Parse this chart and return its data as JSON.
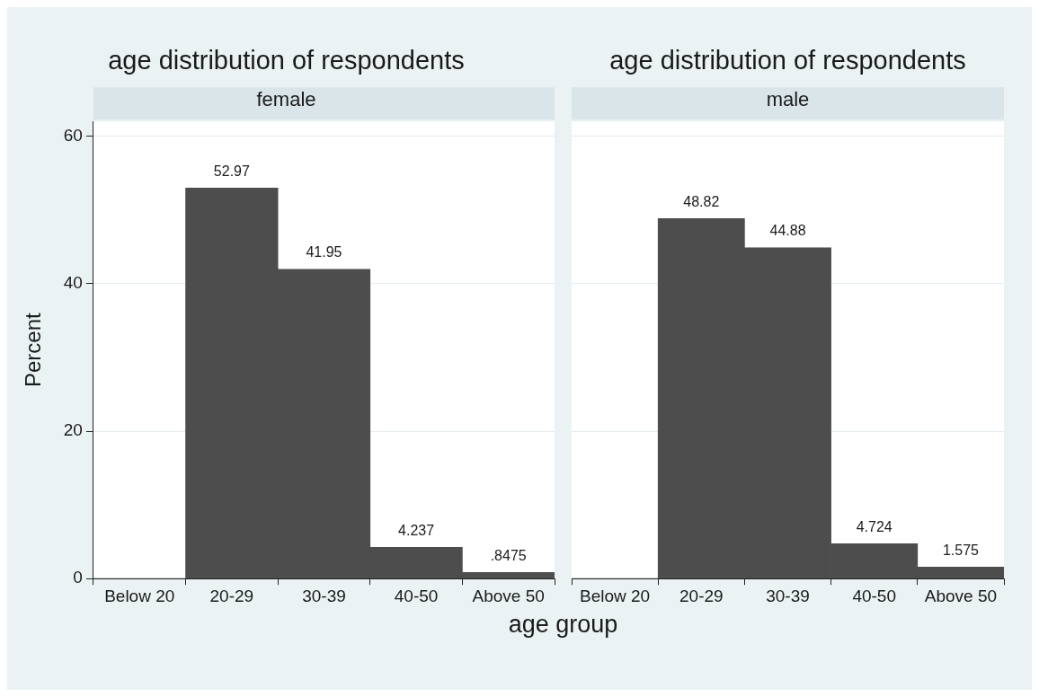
{
  "chart_data": [
    {
      "type": "bar",
      "title": "age distribution of respondents",
      "subtitle": "female",
      "ylabel": "Percent",
      "xlabel": "age group",
      "categories": [
        "Below 20",
        "20-29",
        "30-39",
        "40-50",
        "Above 50"
      ],
      "values": [
        0,
        52.97,
        41.95,
        4.237,
        0.8475
      ],
      "value_labels": [
        null,
        "52.97",
        "41.95",
        "4.237",
        ".8475"
      ],
      "color": "#4d4d4d",
      "ylim": [
        0,
        62
      ],
      "yticks": [
        0,
        20,
        40,
        60
      ],
      "grid": "y",
      "legend": false
    },
    {
      "type": "bar",
      "title": "age distribution of respondents",
      "subtitle": "male",
      "categories": [
        "Below 20",
        "20-29",
        "30-39",
        "40-50",
        "Above 50"
      ],
      "values": [
        0,
        48.82,
        44.88,
        4.724,
        1.575
      ],
      "value_labels": [
        null,
        "48.82",
        "44.88",
        "4.724",
        "1.575"
      ],
      "color": "#4d4d4d",
      "ylim": [
        0,
        62
      ],
      "yticks": [
        0,
        20,
        40,
        60
      ],
      "grid": "y",
      "tick_labels": "x",
      "legend": false
    }
  ]
}
